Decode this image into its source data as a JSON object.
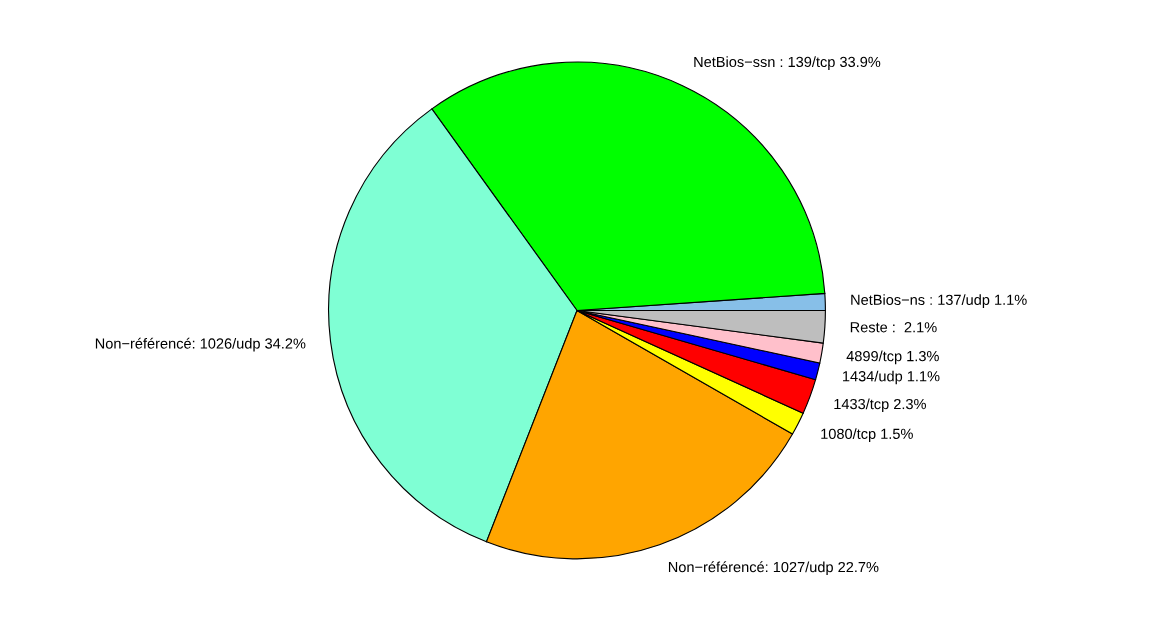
{
  "chart_data": {
    "type": "pie",
    "categories": [
      "NetBios−ns : 137/udp",
      "NetBios−ssn : 139/tcp",
      "Non−référencé: 1026/udp",
      "Non−référencé: 1027/udp",
      "1080/tcp",
      "1433/tcp",
      "1434/udp",
      "4899/tcp",
      "Reste"
    ],
    "values": [
      1.1,
      33.9,
      34.2,
      22.7,
      1.5,
      2.3,
      1.1,
      1.3,
      2.1
    ],
    "value_labels": [
      "1.1%",
      "33.9%",
      "34.2%",
      "22.7%",
      "1.5%",
      "2.3%",
      "1.1%",
      "1.3%",
      ":  2.1%"
    ],
    "colors": [
      "#87bfe8",
      "#00ff00",
      "#7fffd4",
      "#ffa500",
      "#ffff00",
      "#ff0000",
      "#0000ff",
      "#ffc0cb",
      "#bebebe"
    ],
    "legend": false
  }
}
